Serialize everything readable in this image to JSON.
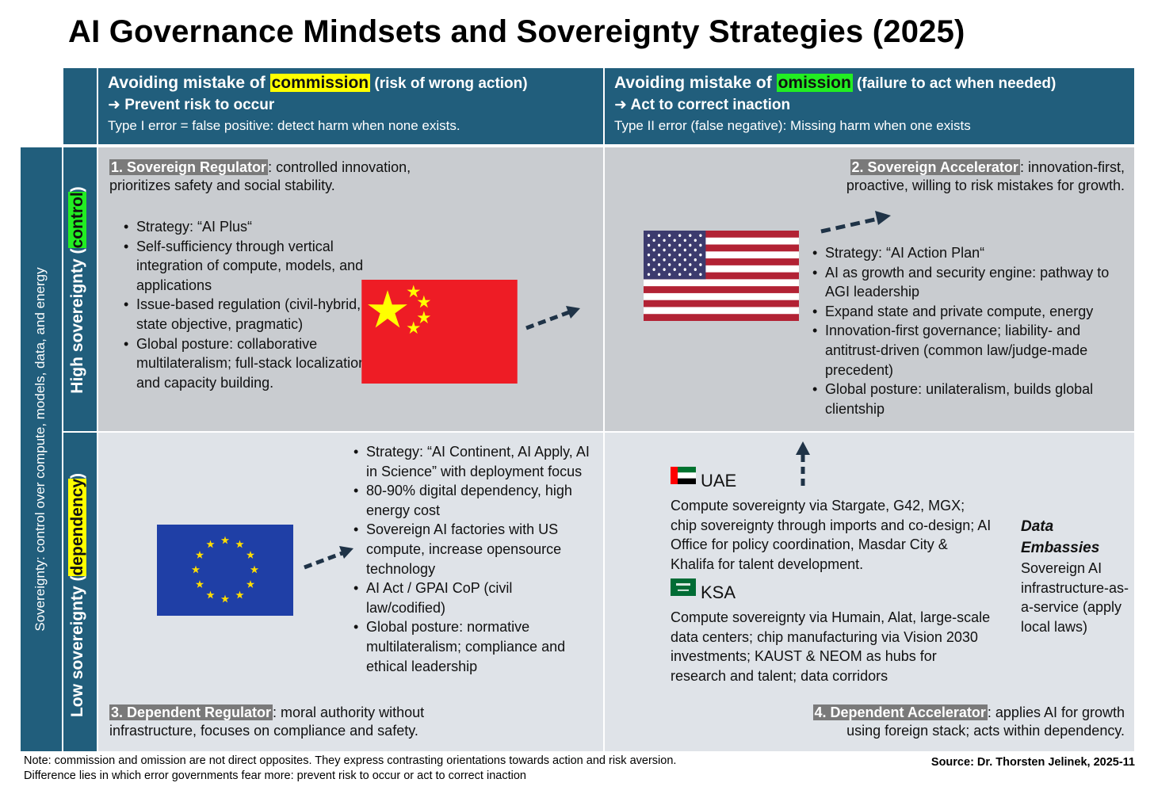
{
  "title": "AI Governance Mindsets and Sovereignty Strategies (2025)",
  "colors": {
    "header_bg": "#215e7c",
    "top_quadrant_bg": "#c9ccd0",
    "bottom_quadrant_bg": "#dfe3e8",
    "highlight_yellow": "#ffff00",
    "highlight_green": "#22ee22",
    "arrow": "#1f3347"
  },
  "columns": {
    "commission": {
      "prefix": "Avoiding mistake of ",
      "keyword": "commission",
      "suffix": " (risk of wrong action)",
      "subtitle": "➜ Prevent risk to occur",
      "description": "Type I error = false positive: detect harm when none exists."
    },
    "omission": {
      "prefix": "Avoiding mistake of ",
      "keyword": "omission",
      "suffix": " (failure to act when needed)",
      "subtitle": "➜ Act to correct inaction",
      "description": "Type II error (false negative): Missing harm when one exists"
    }
  },
  "rows": {
    "axis_label": "Sovereignty: control over compute, models, data, and energy",
    "high": {
      "prefix": "High sovereignty (",
      "keyword": "control",
      "suffix": ")"
    },
    "low": {
      "prefix": "Low sovereignty (",
      "keyword": "dependency",
      "suffix": ")"
    }
  },
  "quadrants": {
    "q1": {
      "name": "1. Sovereign Regulator",
      "line1": ": controlled innovation,",
      "line2": "prioritizes safety and social stability.",
      "flag_icon": "china-flag",
      "bullets": [
        "Strategy: “AI Plus“",
        "Self-sufficiency through vertical integration of compute, models, and applications",
        "Issue-based regulation (civil-hybrid, state objective, pragmatic)",
        "Global posture: collaborative multilateralism; full-stack localization and capacity building."
      ]
    },
    "q2": {
      "name": "2. Sovereign Accelerator",
      "line1": ": innovation-first,",
      "line2": "proactive, willing to risk mistakes for growth.",
      "flag_icon": "usa-flag",
      "bullets": [
        "Strategy: “AI Action Plan“",
        "AI as growth and security engine: pathway to AGI leadership",
        "Expand state and private compute, energy",
        "Innovation-first governance; liability- and antitrust-driven (common law/judge-made precedent)",
        "Global posture: unilateralism, builds global clientship"
      ]
    },
    "q3": {
      "name": "3. Dependent Regulator",
      "line1": ": moral authority without",
      "line2": "infrastructure, focuses on compliance and safety.",
      "flag_icon": "eu-flag",
      "bullets": [
        "Strategy: “AI Continent, AI Apply, AI in Science” with deployment focus",
        "80-90% digital dependency, high energy cost",
        "Sovereign AI factories with US compute, increase opensource technology",
        "AI Act / GPAI CoP (civil law/codified)",
        "Global posture: normative multilateralism; compliance and ethical leadership"
      ]
    },
    "q4": {
      "name": "4. Dependent Accelerator",
      "line1": ": applies AI for growth",
      "line2": "using foreign stack; acts within dependency.",
      "countries": [
        {
          "name": "UAE",
          "flag_icon": "uae-flag",
          "text": "Compute sovereignty via Stargate, G42, MGX; chip sovereignty through imports and co-design; AI Office for policy coordination, Masdar City & Khalifa for talent development."
        },
        {
          "name": "KSA",
          "flag_icon": "saudi-flag",
          "text": "Compute sovereignty via Humain, Alat, large-scale data centers; chip manufacturing via Vision 2030 investments; KAUST & NEOM as hubs for research and talent; data corridors"
        }
      ],
      "data_embassies": {
        "title": "Data Embassies",
        "text": "Sovereign AI infrastructure-as-a-service (apply local laws)"
      }
    }
  },
  "footer": {
    "note": "Note: commission and omission are not direct opposites. They express contrasting orientations towards action and risk aversion. Difference lies in which error governments fear more: prevent risk to occur or act to correct inaction",
    "source": "Source: Dr. Thorsten Jelinek, 2025-11"
  }
}
